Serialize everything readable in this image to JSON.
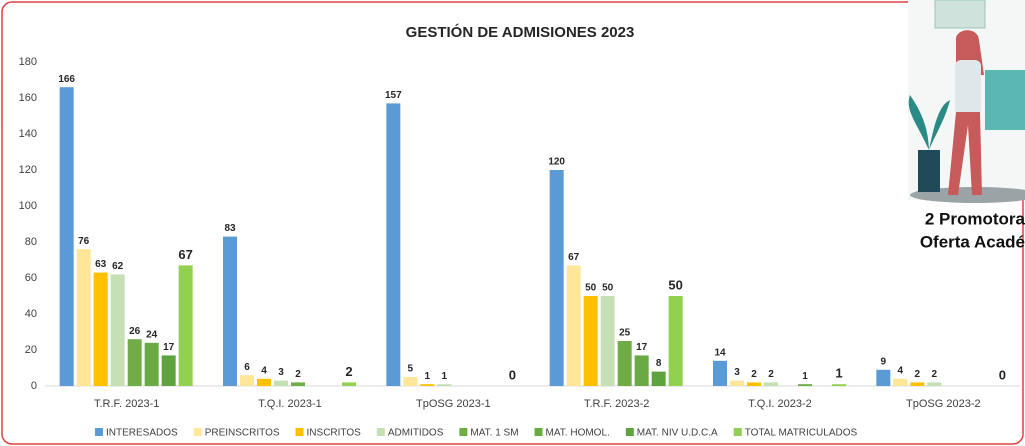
{
  "chart_data": {
    "type": "bar",
    "title": "GESTIÓN DE ADMISIONES 2023",
    "categories": [
      "T.R.F. 2023-1",
      "T.Q.I. 2023-1",
      "TpOSG 2023-1",
      "T.R.F. 2023-2",
      "T.Q.I. 2023-2",
      "TpOSG 2023-2"
    ],
    "series": [
      {
        "name": "INTERESADOS",
        "color": "#5b9bd5",
        "values": [
          166,
          83,
          157,
          120,
          14,
          9
        ]
      },
      {
        "name": "PREINSCRITOS",
        "color": "#ffe699",
        "values": [
          76,
          6,
          5,
          67,
          3,
          4
        ]
      },
      {
        "name": "INSCRITOS",
        "color": "#ffc000",
        "values": [
          63,
          4,
          1,
          50,
          2,
          2
        ]
      },
      {
        "name": "ADMITIDOS",
        "color": "#c5e0b4",
        "values": [
          62,
          3,
          1,
          50,
          2,
          2
        ]
      },
      {
        "name": "MAT. 1 SM",
        "color": "#70ad47",
        "values": [
          26,
          2,
          null,
          25,
          null,
          null
        ]
      },
      {
        "name": "MAT. HOMOL.",
        "color": "#6aaa45",
        "values": [
          24,
          null,
          null,
          17,
          1,
          null
        ]
      },
      {
        "name": "MAT. NIV U.D.C.A",
        "color": "#5fa33f",
        "values": [
          17,
          null,
          null,
          8,
          null,
          null
        ]
      },
      {
        "name": "TOTAL MATRICULADOS",
        "color": "#92d050",
        "values": [
          67,
          2,
          0,
          50,
          1,
          0
        ]
      }
    ],
    "ylim": [
      0,
      180
    ],
    "yticks": [
      0,
      20,
      40,
      60,
      80,
      100,
      120,
      140,
      160,
      180
    ],
    "grid": false
  },
  "promo": {
    "lines": [
      "2 Promotora",
      "Oferta Acadé"
    ]
  }
}
